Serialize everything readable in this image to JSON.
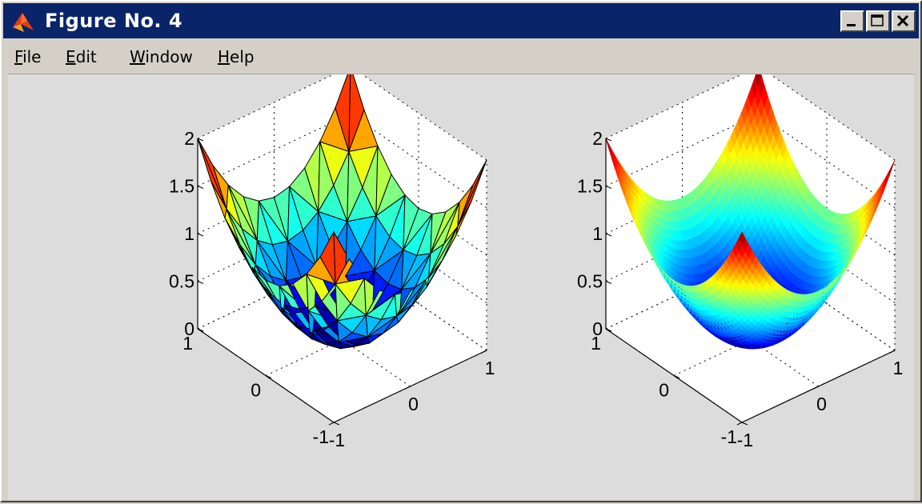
{
  "window": {
    "title": "Figure No. 4",
    "icon": "matlab-logo-icon",
    "controls": [
      "minimize-icon",
      "maximize-icon",
      "close-icon"
    ]
  },
  "menu": {
    "items": [
      {
        "label": "File",
        "mnemonic": "F"
      },
      {
        "label": "Edit",
        "mnemonic": "E"
      },
      {
        "label": "Window",
        "mnemonic": "W"
      },
      {
        "label": "Help",
        "mnemonic": "H"
      }
    ]
  },
  "colors": {
    "titlebar": "#0a246a",
    "window_face": "#d4d0c8",
    "figure_bg": "#dcdcdc",
    "axes_bg": "#ffffff"
  },
  "chart_data": [
    {
      "type": "surface",
      "description_visible": "triangulated mesh surface with black edges, jet colormap",
      "function": "z = x^2 + y^2",
      "x_ticks": [
        "-1",
        "0",
        "1"
      ],
      "y_ticks": [
        "-1",
        "0",
        "1"
      ],
      "z_ticks": [
        "0",
        "0.5",
        "1",
        "1.5",
        "2"
      ],
      "xlim": [
        -1,
        1
      ],
      "ylim": [
        -1,
        1
      ],
      "zlim": [
        0,
        2
      ],
      "grid": true,
      "colormap": "jet",
      "edges": true
    },
    {
      "type": "surface",
      "description_visible": "smooth interpolated-shading surface, jet colormap",
      "function": "z = x^2 + y^2",
      "x_ticks": [
        "-1",
        "0",
        "1"
      ],
      "y_ticks": [
        "-1",
        "0",
        "1"
      ],
      "z_ticks": [
        "0",
        "0.5",
        "1",
        "1.5",
        "2"
      ],
      "xlim": [
        -1,
        1
      ],
      "ylim": [
        -1,
        1
      ],
      "zlim": [
        0,
        2
      ],
      "grid": true,
      "colormap": "jet",
      "edges": false
    }
  ]
}
